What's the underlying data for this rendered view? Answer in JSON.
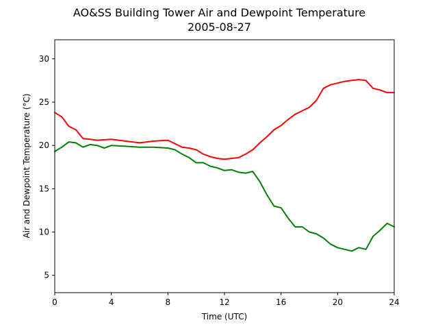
{
  "chart_data": {
    "type": "line",
    "title": "AO&SS Building Tower Air and Dewpoint Temperature",
    "subtitle": "2005-08-27",
    "xlabel": "Time (UTC)",
    "ylabel": "Air and Dewpoint Temperature (°C)",
    "xlim": [
      0,
      24
    ],
    "ylim": [
      3,
      32.2
    ],
    "xticks": [
      0,
      4,
      8,
      12,
      16,
      20,
      24
    ],
    "yticks": [
      5,
      10,
      15,
      20,
      25,
      30
    ],
    "grid": false,
    "legend": "none",
    "series": [
      {
        "color": "#ff0000",
        "x": [
          0,
          0.5,
          1,
          1.5,
          2,
          2.5,
          3,
          4,
          5,
          6,
          7,
          8,
          8.5,
          9,
          9.5,
          10,
          10.5,
          11,
          11.5,
          12,
          12.5,
          13,
          13.5,
          14,
          14.5,
          15,
          15.5,
          16,
          16.5,
          17,
          17.5,
          18,
          18.5,
          19,
          19.5,
          20,
          20.5,
          21,
          21.5,
          22,
          22.5,
          23,
          23.5,
          24
        ],
        "y": [
          23.8,
          23.3,
          22.2,
          21.8,
          20.8,
          20.7,
          20.6,
          20.7,
          20.5,
          20.3,
          20.5,
          20.6,
          20.2,
          19.8,
          19.7,
          19.5,
          19.0,
          18.7,
          18.5,
          18.4,
          18.5,
          18.6,
          19.0,
          19.5,
          20.3,
          21.0,
          21.8,
          22.3,
          23.0,
          23.6,
          24.0,
          24.4,
          25.2,
          26.6,
          27.0,
          27.2,
          27.4,
          27.5,
          27.6,
          27.5,
          26.6,
          26.4,
          26.1,
          26.1
        ]
      },
      {
        "color": "#008000",
        "x": [
          0,
          0.5,
          1,
          1.5,
          2,
          2.5,
          3,
          3.5,
          4,
          5,
          6,
          7,
          8,
          8.5,
          9,
          9.5,
          10,
          10.5,
          11,
          11.5,
          12,
          12.5,
          13,
          13.5,
          14,
          14.5,
          15,
          15.5,
          16,
          16.5,
          17,
          17.5,
          18,
          18.5,
          19,
          19.5,
          20,
          20.5,
          21,
          21.5,
          22,
          22.5,
          23,
          23.5,
          24
        ],
        "y": [
          19.3,
          19.8,
          20.4,
          20.3,
          19.8,
          20.1,
          20.0,
          19.7,
          20.0,
          19.9,
          19.8,
          19.8,
          19.7,
          19.5,
          19.0,
          18.6,
          18.0,
          18.0,
          17.6,
          17.4,
          17.1,
          17.2,
          16.9,
          16.8,
          17.0,
          15.8,
          14.3,
          13.0,
          12.8,
          11.6,
          10.6,
          10.6,
          10.0,
          9.8,
          9.3,
          8.6,
          8.2,
          8.0,
          7.8,
          8.2,
          8.0,
          9.5,
          10.2,
          11.0,
          10.6
        ]
      }
    ]
  }
}
